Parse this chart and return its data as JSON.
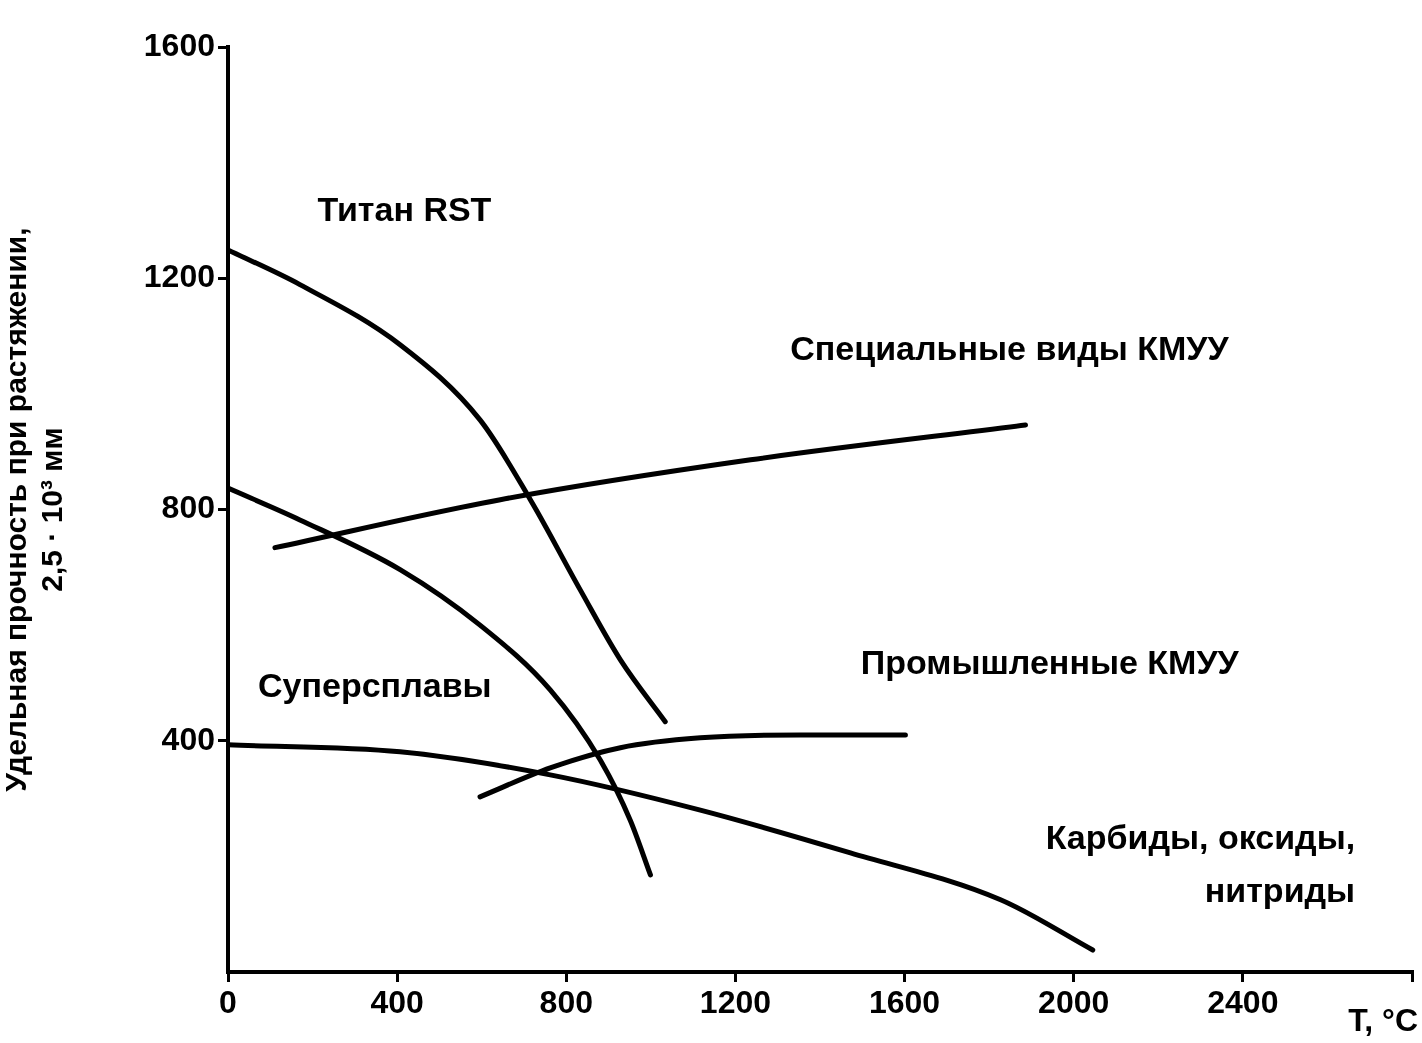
{
  "chart_data": {
    "type": "line",
    "xlabel": "T, °C",
    "ylabel": "Удельная прочность при растяжении, 2,5 · 10³ мм",
    "xlim": [
      0,
      2800
    ],
    "xticks": [
      0,
      400,
      800,
      1200,
      1600,
      2000,
      2400,
      {
        "value": 2800,
        "label": null
      }
    ],
    "ylim": [
      0,
      1600
    ],
    "yticks": [
      400,
      800,
      1200,
      1600
    ],
    "grid": false,
    "legend": false,
    "marker": "none",
    "line_style": "solid",
    "series": [
      {
        "name": "Титан RST",
        "color": "#000000",
        "x": [
          0,
          170,
          407,
          596,
          715,
          833,
          928,
          1034
        ],
        "values": [
          1249,
          1189,
          1085,
          955,
          817,
          661,
          540,
          433
        ]
      },
      {
        "name": "Суперсплавы",
        "color": "#000000",
        "x": [
          0,
          170,
          407,
          596,
          762,
          880,
          951,
          999
        ],
        "values": [
          837,
          782,
          696,
          600,
          488,
          367,
          263,
          168
        ]
      },
      {
        "name": "Специальные виды КМУУ",
        "color": "#000000",
        "x": [
          111,
          644,
          1236,
          1886
        ],
        "values": [
          734,
          817,
          886,
          946
        ]
      },
      {
        "name": "Промышленные КМУУ",
        "color": "#000000",
        "x": [
          596,
          762,
          928,
          1117,
          1354,
          1602
        ],
        "values": [
          303,
          353,
          388,
          405,
          410,
          410
        ]
      },
      {
        "name": "Карбиды, оксиды, нитриды",
        "color": "#000000",
        "x": [
          0,
          407,
          762,
          1117,
          1472,
          1827,
          2045
        ],
        "values": [
          393,
          381,
          341,
          280,
          206,
          125,
          38
        ]
      }
    ]
  }
}
